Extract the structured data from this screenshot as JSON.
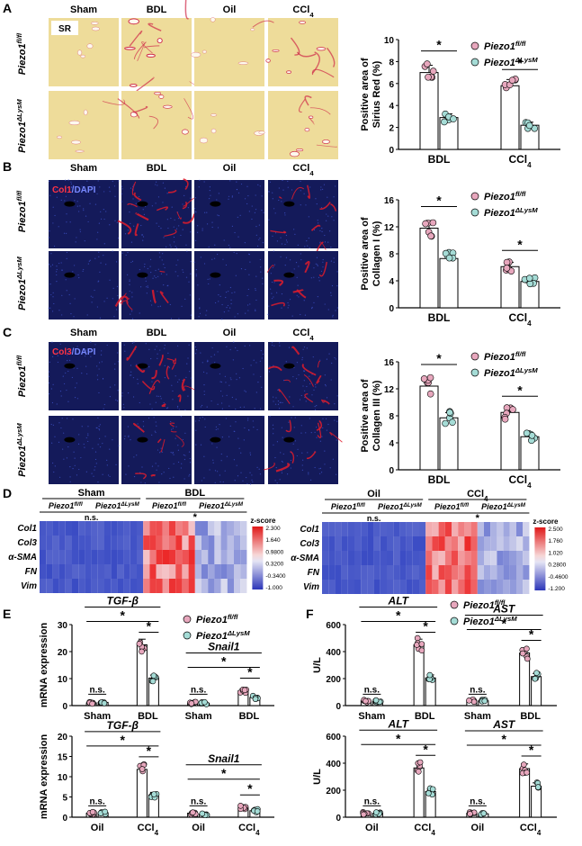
{
  "panel_letters": [
    "A",
    "B",
    "C",
    "D",
    "E",
    "F"
  ],
  "groups": {
    "ctrl": "Piezo1",
    "ctrl_sup": "fl/fl",
    "ko": "Piezo1",
    "ko_sup": "ΔLysM"
  },
  "histology": {
    "columns": [
      "Sham",
      "BDL",
      "Oil",
      "CCl",
      "4"
    ],
    "row_labels": [
      "Piezo1",
      "fl/fl",
      "Piezo1",
      "ΔLysM"
    ],
    "stain_A": "SR",
    "stain_B": [
      "Col1",
      "/DAPI"
    ],
    "stain_C": [
      "Col3",
      "/DAPI"
    ]
  },
  "colors": {
    "ctrl": "#e7a7bd",
    "ko": "#a5dcd6",
    "sirius_bg": "#eedc9a",
    "sirius_fiber": "#cf2a49",
    "ifc_bg": "#141a5a",
    "ifc_red": "#e01c2c"
  },
  "chart_data": [
    {
      "id": "A",
      "type": "bar",
      "categories": [
        "BDL",
        "CCl4"
      ],
      "ylabel": [
        "Positive area of",
        "Sirius Red (%)"
      ],
      "ylim": [
        0,
        10
      ],
      "yticks": [
        0,
        2,
        4,
        6,
        8,
        10
      ],
      "series": [
        {
          "name": "Piezo1 fl/fl",
          "values": [
            7.0,
            5.8
          ]
        },
        {
          "name": "Piezo1 ΔLysM",
          "values": [
            2.9,
            2.2
          ]
        }
      ],
      "annotations": [
        "*",
        "*"
      ]
    },
    {
      "id": "B",
      "type": "bar",
      "categories": [
        "BDL",
        "CCl4"
      ],
      "ylabel": [
        "Positive area of",
        "Collagen I (%)"
      ],
      "ylim": [
        0,
        16
      ],
      "yticks": [
        0,
        4,
        8,
        12,
        16
      ],
      "series": [
        {
          "name": "Piezo1 fl/fl",
          "values": [
            11.8,
            6.1
          ]
        },
        {
          "name": "Piezo1 ΔLysM",
          "values": [
            7.3,
            3.9
          ]
        }
      ],
      "annotations": [
        "*",
        "*"
      ]
    },
    {
      "id": "C",
      "type": "bar",
      "categories": [
        "BDL",
        "CCl4"
      ],
      "ylabel": [
        "Positive area of",
        "Collagen III (%)"
      ],
      "ylim": [
        0,
        16
      ],
      "yticks": [
        0,
        4,
        8,
        12,
        16
      ],
      "series": [
        {
          "name": "Piezo1 fl/fl",
          "values": [
            12.4,
            8.5
          ]
        },
        {
          "name": "Piezo1 ΔLysM",
          "values": [
            7.7,
            4.9
          ]
        }
      ],
      "annotations": [
        "*",
        "*"
      ]
    },
    {
      "id": "D1",
      "type": "heatmap",
      "title_groups": [
        "Sham",
        "BDL"
      ],
      "rows": [
        "Col1",
        "Col3",
        "α-SMA",
        "FN",
        "Vim"
      ],
      "colorbar_label": "z-score",
      "colorbar_ticks": [
        "2.300",
        "1.640",
        "0.9800",
        "0.3200",
        "-0.3400",
        "-1.000"
      ],
      "annotations": [
        "n.s.",
        "*"
      ]
    },
    {
      "id": "D2",
      "type": "heatmap",
      "title_groups": [
        "Oil",
        "CCl4"
      ],
      "rows": [
        "Col1",
        "Col3",
        "α-SMA",
        "FN",
        "Vim"
      ],
      "colorbar_label": "z-score",
      "colorbar_ticks": [
        "2.500",
        "1.760",
        "1.020",
        "0.2800",
        "-0.4600",
        "-1.200"
      ],
      "annotations": [
        "n.s.",
        "*"
      ]
    },
    {
      "id": "E1",
      "type": "bar",
      "ylabel": "mRNA expression",
      "ylim": [
        0,
        30
      ],
      "yticks": [
        0,
        10,
        20,
        30
      ],
      "categories": [
        "Sham",
        "BDL",
        "Sham",
        "BDL"
      ],
      "gene_labels": [
        "TGF-β",
        "Snail1"
      ],
      "series": [
        {
          "name": "Piezo1 fl/fl",
          "values": [
            1.0,
            22.5,
            1.0,
            5.5
          ]
        },
        {
          "name": "Piezo1 ΔLysM",
          "values": [
            1.2,
            10.2,
            0.9,
            3.0
          ]
        }
      ],
      "annotations": [
        "n.s.",
        "*",
        "*",
        "*",
        "n.s.",
        "*",
        "*",
        "*"
      ]
    },
    {
      "id": "E2",
      "type": "bar",
      "ylabel": "mRNA expression",
      "ylim": [
        0,
        20
      ],
      "yticks": [
        0,
        5,
        10,
        15,
        20
      ],
      "categories": [
        "Oil",
        "CCl4",
        "Oil",
        "CCl4"
      ],
      "gene_labels": [
        "TGF-β",
        "Snail1"
      ],
      "series": [
        {
          "name": "Piezo1 fl/fl",
          "values": [
            1.0,
            11.8,
            1.0,
            2.4
          ]
        },
        {
          "name": "Piezo1 ΔLysM",
          "values": [
            1.1,
            5.5,
            0.8,
            1.6
          ]
        }
      ],
      "annotations": [
        "n.s.",
        "*",
        "*",
        "*",
        "n.s.",
        "*",
        "*",
        "*"
      ]
    },
    {
      "id": "F1",
      "type": "bar",
      "ylabel": "U/L",
      "ylim": [
        0,
        600
      ],
      "yticks": [
        0,
        200,
        400,
        600
      ],
      "categories": [
        "Sham",
        "BDL",
        "Sham",
        "BDL"
      ],
      "gene_labels": [
        "ALT",
        "AST"
      ],
      "series": [
        {
          "name": "Piezo1 fl/fl",
          "values": [
            35,
            450,
            35,
            390
          ]
        },
        {
          "name": "Piezo1 ΔLysM",
          "values": [
            30,
            205,
            35,
            215
          ]
        }
      ],
      "annotations": [
        "n.s.",
        "*",
        "*",
        "*",
        "n.s.",
        "*",
        "*",
        "*"
      ]
    },
    {
      "id": "F2",
      "type": "bar",
      "ylabel": "U/L",
      "ylim": [
        0,
        600
      ],
      "yticks": [
        0,
        200,
        400,
        600
      ],
      "categories": [
        "Oil",
        "CCl4",
        "Oil",
        "CCl4"
      ],
      "gene_labels": [
        "ALT",
        "AST"
      ],
      "series": [
        {
          "name": "Piezo1 fl/fl",
          "values": [
            30,
            365,
            30,
            360
          ]
        },
        {
          "name": "Piezo1 ΔLysM",
          "values": [
            30,
            190,
            25,
            230
          ]
        }
      ],
      "annotations": [
        "n.s.",
        "*",
        "*",
        "*",
        "n.s.",
        "*",
        "*",
        "*"
      ]
    }
  ]
}
